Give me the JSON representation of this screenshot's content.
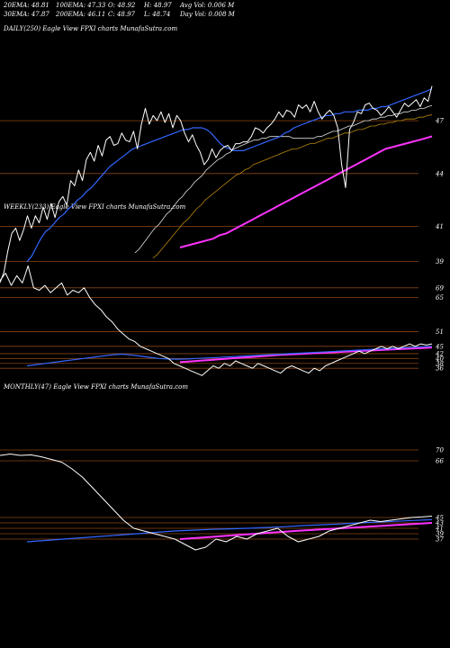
{
  "header": {
    "row1": [
      "20EMA: 48.81",
      "100EMA: 47.33",
      "O: 48.92",
      "H: 48.97",
      "Avg Vol: 0.006  M"
    ],
    "row2": [
      "30EMA: 47.87",
      "200EMA: 46.11",
      "C: 48.97",
      "L: 48.74",
      "Day Vol: 0.008 M"
    ]
  },
  "colors": {
    "background": "#000000",
    "price": "#ffffff",
    "ema_short": "#3366ff",
    "ema_mid": "#dddddd",
    "ema_long": "#b8860b",
    "ema_200": "#ff33ff",
    "level_line": "#8b4513"
  },
  "chart_data": [
    {
      "type": "line",
      "label": "DAILY(250)  Eagle   View  FPXI charts MunafaSutra.com",
      "y_ticks": [
        "47",
        "44",
        "41",
        "39"
      ],
      "levels": [
        47,
        44,
        41,
        39
      ],
      "ylim": [
        37.5,
        49
      ],
      "series": [
        {
          "role": "price",
          "values": [
            37.8,
            38.4,
            39.6,
            40.6,
            40.9,
            40.2,
            40.8,
            41.6,
            40.9,
            41.6,
            41.2,
            42.1,
            41.4,
            42.3,
            41.5,
            42.4,
            42.7,
            42.2,
            43.6,
            43.3,
            44.2,
            43.6,
            44.8,
            45.2,
            44.7,
            45.6,
            45.0,
            45.9,
            46.1,
            45.6,
            45.7,
            46.3,
            45.9,
            45.8,
            46.4,
            45.4,
            46.8,
            47.7,
            46.8,
            47.3,
            47.0,
            47.5,
            46.9,
            47.4,
            46.6,
            47.3,
            47.0,
            46.3,
            45.8,
            46.2,
            45.6,
            45.2,
            44.5,
            44.8,
            45.4,
            44.9,
            45.3,
            45.5,
            45.6,
            45.3,
            45.7,
            45.7,
            45.8,
            45.8,
            46.1,
            46.6,
            46.5,
            46.3,
            46.6,
            46.8,
            47.1,
            47.5,
            47.2,
            47.6,
            47.5,
            47.2,
            47.9,
            47.7,
            47.9,
            47.5,
            48.1,
            47.5,
            47.1,
            47.4,
            47.6,
            47.3,
            46.6,
            44.5,
            43.2,
            46.5,
            46.9,
            47.5,
            47.4,
            47.9,
            48.0,
            47.7,
            47.6,
            47.3,
            47.5,
            47.8,
            47.5,
            47.2,
            47.6,
            48.0,
            47.8,
            48.0,
            48.2,
            47.8,
            48.3,
            48.1,
            48.97
          ]
        },
        {
          "role": "ema_short",
          "values": [
            39.0,
            39.3,
            39.8,
            40.3,
            40.7,
            40.9,
            41.2,
            41.5,
            41.7,
            42.0,
            42.2,
            42.5,
            42.7,
            43.0,
            43.2,
            43.5,
            43.8,
            44.1,
            44.4,
            44.6,
            44.8,
            45.0,
            45.2,
            45.4,
            45.5,
            45.6,
            45.7,
            45.8,
            45.9,
            46.0,
            46.1,
            46.2,
            46.3,
            46.4,
            46.5,
            46.5,
            46.6,
            46.6,
            46.6,
            46.5,
            46.3,
            46.0,
            45.7,
            45.5,
            45.4,
            45.3,
            45.3,
            45.3,
            45.4,
            45.5,
            45.6,
            45.7,
            45.8,
            45.9,
            46.0,
            46.1,
            46.3,
            46.4,
            46.6,
            46.7,
            46.8,
            46.9,
            47.0,
            47.1,
            47.2,
            47.3,
            47.3,
            47.4,
            47.4,
            47.5,
            47.5,
            47.5,
            47.6,
            47.6,
            47.6,
            47.7,
            47.7,
            47.8,
            47.8,
            47.9,
            48.0,
            48.1,
            48.2,
            48.3,
            48.4,
            48.5,
            48.6,
            48.7,
            48.81
          ]
        },
        {
          "role": "ema_mid",
          "values": [
            39.5,
            39.7,
            40.0,
            40.3,
            40.6,
            40.9,
            41.1,
            41.4,
            41.7,
            41.9,
            42.2,
            42.5,
            42.7,
            43.0,
            43.2,
            43.5,
            43.7,
            43.9,
            44.2,
            44.4,
            44.6,
            44.8,
            44.9,
            45.1,
            45.2,
            45.4,
            45.5,
            45.6,
            45.7,
            45.8,
            45.9,
            45.9,
            46.0,
            46.0,
            46.1,
            46.1,
            46.1,
            46.1,
            46.1,
            46.1,
            46.0,
            46.0,
            46.0,
            46.0,
            46.0,
            46.0,
            46.1,
            46.1,
            46.2,
            46.3,
            46.4,
            46.4,
            46.5,
            46.6,
            46.7,
            46.7,
            46.8,
            46.9,
            47.0,
            47.0,
            47.1,
            47.1,
            47.2,
            47.2,
            47.3,
            47.3,
            47.4,
            47.4,
            47.5,
            47.5,
            47.6,
            47.6,
            47.7,
            47.7,
            47.8,
            47.87
          ]
        },
        {
          "role": "ema_long",
          "values": [
            39.2,
            39.4,
            39.7,
            40.0,
            40.3,
            40.6,
            40.9,
            41.2,
            41.4,
            41.7,
            42.0,
            42.2,
            42.5,
            42.7,
            42.9,
            43.1,
            43.3,
            43.5,
            43.7,
            43.9,
            44.0,
            44.2,
            44.3,
            44.5,
            44.6,
            44.7,
            44.8,
            44.9,
            45.0,
            45.1,
            45.2,
            45.3,
            45.4,
            45.4,
            45.5,
            45.6,
            45.7,
            45.7,
            45.8,
            45.9,
            46.0,
            46.0,
            46.1,
            46.2,
            46.3,
            46.3,
            46.4,
            46.5,
            46.5,
            46.6,
            46.7,
            46.7,
            46.8,
            46.8,
            46.9,
            46.9,
            47.0,
            47.0,
            47.1,
            47.1,
            47.1,
            47.2,
            47.2,
            47.3,
            47.33
          ]
        },
        {
          "role": "ema_200",
          "values": [
            39.8,
            39.9,
            40.0,
            40.1,
            40.2,
            40.3,
            40.5,
            40.6,
            40.8,
            41.0,
            41.2,
            41.4,
            41.6,
            41.8,
            42.0,
            42.2,
            42.4,
            42.6,
            42.8,
            43.0,
            43.2,
            43.4,
            43.6,
            43.8,
            44.0,
            44.2,
            44.4,
            44.6,
            44.8,
            45.0,
            45.2,
            45.4,
            45.5,
            45.6,
            45.7,
            45.8,
            45.9,
            46.0,
            46.11
          ]
        }
      ]
    },
    {
      "type": "line",
      "label": "WEEKLY(233)  Eagle   View  FPXI charts MunafaSutra.com",
      "y_ticks": [
        "69",
        "65",
        "51",
        "45",
        "42",
        "40",
        "38",
        "36"
      ],
      "levels": [
        69,
        65,
        51,
        45,
        42,
        40,
        38,
        36
      ],
      "ylim": [
        32,
        80
      ],
      "series": [
        {
          "role": "price",
          "values": [
            72,
            75,
            70,
            74,
            71,
            78,
            69,
            68,
            70,
            67,
            69,
            71,
            66,
            68,
            67,
            69,
            65,
            62,
            60,
            57,
            55,
            52,
            50,
            48,
            47,
            45,
            44,
            43,
            42,
            41,
            40,
            38,
            37,
            36,
            35,
            34,
            33,
            35,
            37,
            36,
            38,
            37,
            39,
            38,
            37,
            36,
            38,
            37,
            36,
            35,
            34,
            36,
            37,
            36,
            35,
            34,
            36,
            35,
            37,
            38,
            39,
            40,
            41,
            42,
            43,
            42,
            43,
            44,
            45,
            44,
            45,
            44,
            45,
            46,
            45,
            46,
            45.5,
            46
          ]
        },
        {
          "role": "ema_short",
          "values": [
            37,
            37.5,
            38,
            38.5,
            39,
            39.5,
            40,
            40.5,
            41,
            41.5,
            41.8,
            41.5,
            41,
            40.5,
            40,
            39.8,
            39.7,
            39.8,
            40,
            40.2,
            40.4,
            40.6,
            40.8,
            41,
            41.2,
            41.4,
            41.6,
            41.8,
            42,
            42.2,
            42.4,
            42.6,
            42.8,
            43,
            43.2,
            43.4,
            43.6,
            43.8,
            44,
            44.2,
            44.4,
            44.6,
            44.8,
            45
          ]
        },
        {
          "role": "ema_200",
          "values": [
            38.5,
            38.8,
            39.1,
            39.4,
            39.7,
            40,
            40.3,
            40.6,
            40.9,
            41.2,
            41.5,
            41.7,
            41.9,
            42.1,
            42.3,
            42.5,
            42.7,
            42.9,
            43.1,
            43.3,
            43.5,
            43.7,
            43.9,
            44.1,
            44.3,
            44.5
          ]
        }
      ]
    },
    {
      "type": "line",
      "label": "MONTHLY(47)  Eagle   View  FPXI charts MunafaSutra.com",
      "y_ticks": [
        "70",
        "66",
        "45",
        "43",
        "41",
        "39",
        "37"
      ],
      "levels": [
        70,
        66,
        45,
        43,
        41,
        39,
        37
      ],
      "ylim": [
        20,
        80
      ],
      "series": [
        {
          "role": "price",
          "values": [
            68,
            68.5,
            68,
            68.2,
            67.5,
            66.5,
            65.5,
            63,
            60,
            56,
            52,
            48,
            44,
            41,
            40,
            39,
            38,
            37,
            35,
            33,
            34,
            37,
            36,
            38,
            37,
            39,
            40,
            41,
            38,
            36,
            37,
            38,
            40,
            41,
            42,
            43,
            44,
            43.5,
            44,
            44.5,
            45,
            45.2,
            45.5
          ]
        },
        {
          "role": "ema_short",
          "values": [
            36,
            36.5,
            37,
            37.5,
            38,
            38.5,
            39,
            39.5,
            40,
            40.3,
            40.6,
            40.8,
            41,
            41.3,
            41.6,
            42,
            42.3,
            42.6,
            43,
            43.3,
            43.6,
            43.9,
            44.2
          ]
        },
        {
          "role": "ema_200",
          "values": [
            37,
            37.6,
            38.2,
            38.8,
            39.4,
            40,
            40.5,
            41,
            41.5,
            42,
            42.5,
            43
          ]
        }
      ]
    }
  ]
}
